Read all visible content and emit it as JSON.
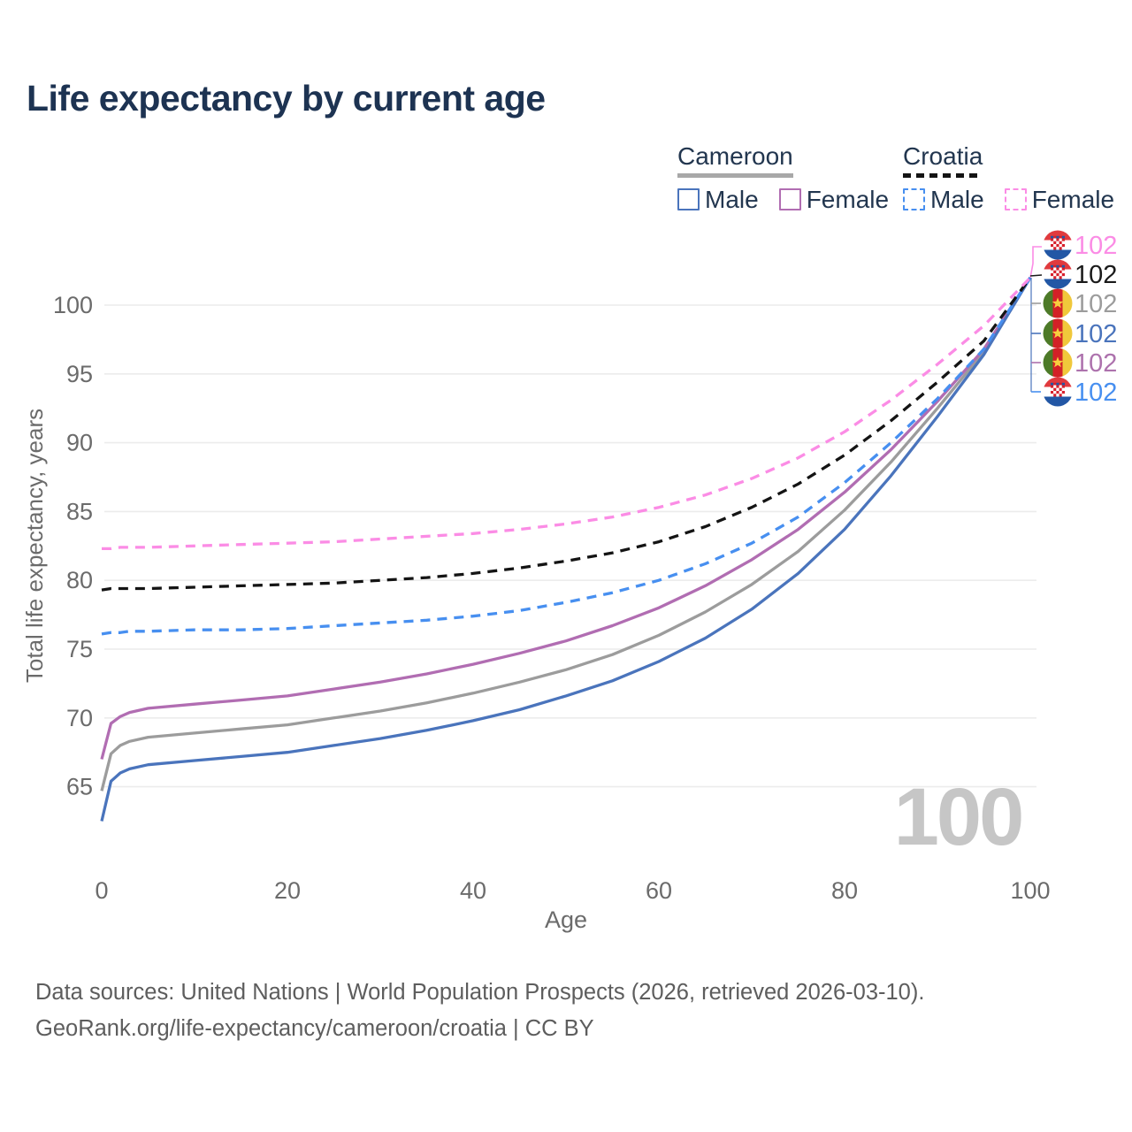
{
  "header": {
    "title": "Life expectancy by current age"
  },
  "legend": {
    "groups": [
      {
        "name": "Cameroon",
        "line_style": "solid",
        "line_color": "#a8a8a8",
        "items": [
          {
            "label": "Male",
            "color": "#4a74bc",
            "box_style": "solid"
          },
          {
            "label": "Female",
            "color": "#b16db2",
            "box_style": "solid"
          }
        ]
      },
      {
        "name": "Croatia",
        "line_style": "dashed",
        "line_color": "#141414",
        "items": [
          {
            "label": "Male",
            "color": "#478ff0",
            "box_style": "dashed"
          },
          {
            "label": "Female",
            "color": "#fb8ce5",
            "box_style": "dashed"
          }
        ]
      }
    ]
  },
  "chart_data": {
    "type": "line",
    "title": "Life expectancy by current age",
    "xlabel": "Age",
    "ylabel": "Total life expectancy, years",
    "x_ticks": [
      0,
      20,
      40,
      60,
      80,
      100
    ],
    "y_ticks": [
      65,
      70,
      75,
      80,
      85,
      90,
      95,
      100
    ],
    "xlim": [
      0,
      100
    ],
    "ylim": [
      62,
      103
    ],
    "grid": "horizontal-only",
    "legend_position": "top-right",
    "x": [
      0,
      1,
      2,
      3,
      5,
      10,
      15,
      20,
      25,
      30,
      35,
      40,
      45,
      50,
      55,
      60,
      65,
      70,
      75,
      80,
      85,
      90,
      95,
      100
    ],
    "series": [
      {
        "id": "cameroon-combined",
        "name": "Cameroon (both sexes)",
        "country": "Cameroon",
        "sex": "combined",
        "color": "#9c9c9c",
        "dash": false,
        "values": [
          64.7,
          67.4,
          68.0,
          68.3,
          68.6,
          68.9,
          69.2,
          69.5,
          70.0,
          70.5,
          71.1,
          71.8,
          72.6,
          73.5,
          74.6,
          76.0,
          77.7,
          79.7,
          82.1,
          85.1,
          88.6,
          92.5,
          96.6,
          102
        ]
      },
      {
        "id": "cameroon-female",
        "name": "Cameroon Female",
        "country": "Cameroon",
        "sex": "female",
        "color": "#b16db2",
        "dash": false,
        "values": [
          67.0,
          69.6,
          70.1,
          70.4,
          70.7,
          71.0,
          71.3,
          71.6,
          72.1,
          72.6,
          73.2,
          73.9,
          74.7,
          75.6,
          76.7,
          78.0,
          79.6,
          81.5,
          83.7,
          86.4,
          89.5,
          93.0,
          96.8,
          102
        ]
      },
      {
        "id": "cameroon-male",
        "name": "Cameroon Male",
        "country": "Cameroon",
        "sex": "male",
        "color": "#4a74bc",
        "dash": false,
        "values": [
          62.5,
          65.4,
          66.0,
          66.3,
          66.6,
          66.9,
          67.2,
          67.5,
          68.0,
          68.5,
          69.1,
          69.8,
          70.6,
          71.6,
          72.7,
          74.1,
          75.8,
          77.9,
          80.5,
          83.7,
          87.6,
          91.9,
          96.4,
          102
        ]
      },
      {
        "id": "croatia-male",
        "name": "Croatia Male",
        "country": "Croatia",
        "sex": "male",
        "color": "#478ff0",
        "dash": true,
        "values": [
          76.1,
          76.2,
          76.2,
          76.3,
          76.3,
          76.4,
          76.4,
          76.5,
          76.7,
          76.9,
          77.1,
          77.4,
          77.8,
          78.4,
          79.1,
          80.0,
          81.2,
          82.7,
          84.6,
          87.1,
          90.0,
          93.2,
          96.8,
          102
        ]
      },
      {
        "id": "croatia-combined",
        "name": "Croatia (both sexes)",
        "country": "Croatia",
        "sex": "combined",
        "color": "#141414",
        "dash": true,
        "values": [
          79.3,
          79.4,
          79.4,
          79.4,
          79.4,
          79.5,
          79.6,
          79.7,
          79.8,
          80.0,
          80.2,
          80.5,
          80.9,
          81.4,
          82.0,
          82.8,
          83.9,
          85.3,
          87.0,
          89.1,
          91.6,
          94.4,
          97.4,
          102
        ]
      },
      {
        "id": "croatia-female",
        "name": "Croatia Female",
        "country": "Croatia",
        "sex": "female",
        "color": "#fb8ce5",
        "dash": true,
        "values": [
          82.3,
          82.3,
          82.4,
          82.4,
          82.4,
          82.5,
          82.6,
          82.7,
          82.8,
          83.0,
          83.2,
          83.4,
          83.7,
          84.1,
          84.6,
          85.3,
          86.2,
          87.4,
          88.9,
          90.8,
          93.1,
          95.7,
          98.5,
          102
        ]
      }
    ],
    "end_labels": [
      {
        "series": "croatia-female",
        "flag": "croatia-flag-icon",
        "value": "102",
        "color": "#fb8ce5"
      },
      {
        "series": "croatia-combined",
        "flag": "croatia-flag-icon",
        "value": "102",
        "color": "#1a1a1a"
      },
      {
        "series": "cameroon-combined",
        "flag": "cameroon-flag-icon",
        "value": "102",
        "color": "#9c9c9c"
      },
      {
        "series": "cameroon-male",
        "flag": "cameroon-flag-icon",
        "value": "102",
        "color": "#4a74bc"
      },
      {
        "series": "cameroon-female",
        "flag": "cameroon-flag-icon",
        "value": "102",
        "color": "#ad72ad"
      },
      {
        "series": "croatia-male",
        "flag": "croatia-flag-icon",
        "value": "102",
        "color": "#478ff0"
      }
    ],
    "watermark": "100"
  },
  "footer": {
    "line1": "Data sources: United Nations | World Population Prospects (2026, retrieved 2026-03-10).",
    "line2": "GeoRank.org/life-expectancy/cameroon/croatia | CC BY"
  }
}
